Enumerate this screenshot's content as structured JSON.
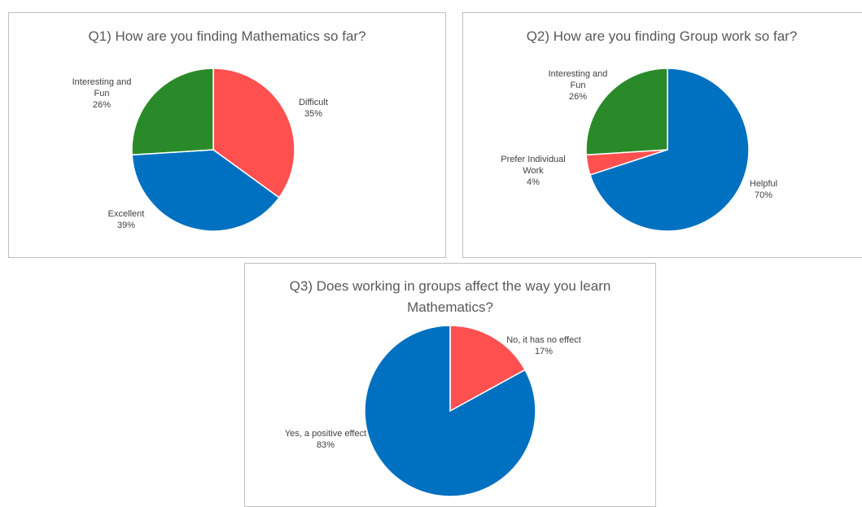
{
  "chart_data": [
    {
      "type": "pie",
      "title": "Q1) How are you finding Mathematics so far?",
      "categories": [
        "Difficult",
        "Excellent",
        "Interesting and Fun"
      ],
      "values": [
        35,
        39,
        26
      ],
      "value_labels": [
        "35%",
        "39%",
        "26%"
      ],
      "colors": [
        "#ff5050",
        "#0070c0",
        "#2a8a2a"
      ]
    },
    {
      "type": "pie",
      "title": "Q2) How are you finding Group work so far?",
      "categories": [
        "Helpful",
        "Prefer Individual Work",
        "Interesting and Fun"
      ],
      "values": [
        70,
        4,
        26
      ],
      "value_labels": [
        "70%",
        "4%",
        "26%"
      ],
      "colors": [
        "#0070c0",
        "#ff5050",
        "#2a8a2a"
      ]
    },
    {
      "type": "pie",
      "title": "Q3) Does working in groups affect the way you learn Mathematics?",
      "categories": [
        "No, it has no effect",
        "Yes, a positive effect"
      ],
      "values": [
        17,
        83
      ],
      "value_labels": [
        "17%",
        "83%"
      ],
      "colors": [
        "#ff5050",
        "#0070c0"
      ]
    }
  ]
}
